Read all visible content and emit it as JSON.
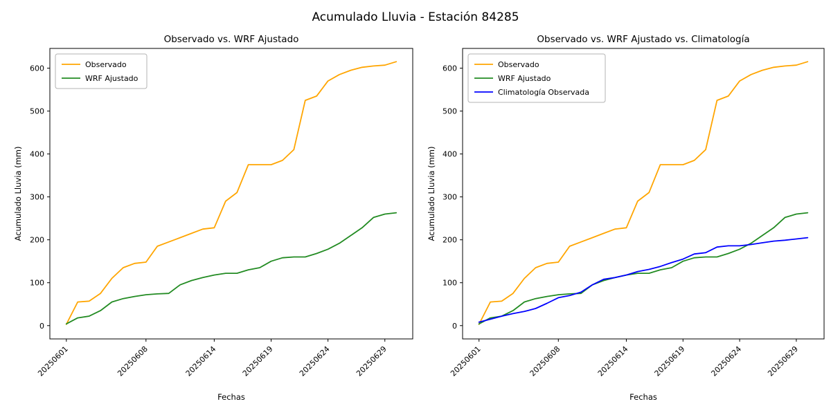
{
  "figure_title": "Acumulado Lluvia - Estación 84285",
  "chart_data": [
    {
      "type": "line",
      "title": "Observado vs. WRF Ajustado",
      "xlabel": "Fechas",
      "ylabel": "Acumulado Lluvia (mm)",
      "x": [
        "20250601",
        "20250602",
        "20250603",
        "20250604",
        "20250605",
        "20250606",
        "20250607",
        "20250608",
        "20250609",
        "20250610",
        "20250611",
        "20250612",
        "20250613",
        "20250614",
        "20250615",
        "20250616",
        "20250617",
        "20250618",
        "20250619",
        "20250620",
        "20250621",
        "20250622",
        "20250623",
        "20250624",
        "20250625",
        "20250626",
        "20250627",
        "20250628",
        "20250629",
        "20250630"
      ],
      "x_ticks": [
        "20250601",
        "20250608",
        "20250614",
        "20250619",
        "20250624",
        "20250629"
      ],
      "x_tick_indices": [
        0,
        7,
        13,
        18,
        23,
        28
      ],
      "y_ticks": [
        0,
        100,
        200,
        300,
        400,
        500,
        600
      ],
      "ylim": [
        -31,
        646
      ],
      "xlim": [
        -1.45,
        30.45
      ],
      "grid": false,
      "legend_position": "upper left",
      "series": [
        {
          "name": "Observado",
          "color": "#FFA500",
          "values": [
            3,
            55,
            57,
            75,
            110,
            135,
            145,
            148,
            185,
            195,
            205,
            215,
            225,
            228,
            290,
            310,
            375,
            375,
            375,
            385,
            410,
            525,
            535,
            570,
            585,
            595,
            602,
            605,
            607,
            615
          ]
        },
        {
          "name": "WRF Ajustado",
          "color": "#228B22",
          "values": [
            4,
            18,
            22,
            35,
            55,
            63,
            68,
            72,
            74,
            75,
            95,
            105,
            112,
            118,
            122,
            122,
            130,
            135,
            150,
            158,
            160,
            160,
            168,
            178,
            192,
            210,
            228,
            252,
            260,
            263
          ]
        }
      ]
    },
    {
      "type": "line",
      "title": "Observado vs. WRF Ajustado vs. Climatología",
      "xlabel": "Fechas",
      "ylabel": "Acumulado Lluvia (mm)",
      "x": [
        "20250601",
        "20250602",
        "20250603",
        "20250604",
        "20250605",
        "20250606",
        "20250607",
        "20250608",
        "20250609",
        "20250610",
        "20250611",
        "20250612",
        "20250613",
        "20250614",
        "20250615",
        "20250616",
        "20250617",
        "20250618",
        "20250619",
        "20250620",
        "20250621",
        "20250622",
        "20250623",
        "20250624",
        "20250625",
        "20250626",
        "20250627",
        "20250628",
        "20250629",
        "20250630"
      ],
      "x_ticks": [
        "20250601",
        "20250608",
        "20250614",
        "20250619",
        "20250624",
        "20250629"
      ],
      "x_tick_indices": [
        0,
        7,
        13,
        18,
        23,
        28
      ],
      "y_ticks": [
        0,
        100,
        200,
        300,
        400,
        500,
        600
      ],
      "ylim": [
        -31,
        646
      ],
      "xlim": [
        -1.45,
        30.45
      ],
      "grid": false,
      "legend_position": "upper left",
      "series": [
        {
          "name": "Observado",
          "color": "#FFA500",
          "values": [
            3,
            55,
            57,
            75,
            110,
            135,
            145,
            148,
            185,
            195,
            205,
            215,
            225,
            228,
            290,
            310,
            375,
            375,
            375,
            385,
            410,
            525,
            535,
            570,
            585,
            595,
            602,
            605,
            607,
            615
          ]
        },
        {
          "name": "WRF Ajustado",
          "color": "#228B22",
          "values": [
            4,
            18,
            22,
            35,
            55,
            63,
            68,
            72,
            74,
            75,
            95,
            105,
            112,
            118,
            122,
            122,
            130,
            135,
            150,
            158,
            160,
            160,
            168,
            178,
            192,
            210,
            228,
            252,
            260,
            263
          ]
        },
        {
          "name": "Climatología Observada",
          "color": "#0000FF",
          "values": [
            8,
            15,
            22,
            28,
            33,
            40,
            52,
            65,
            70,
            78,
            95,
            108,
            112,
            118,
            126,
            131,
            138,
            147,
            155,
            167,
            170,
            183,
            186,
            186,
            189,
            193,
            197,
            199,
            202,
            205
          ]
        }
      ]
    }
  ]
}
